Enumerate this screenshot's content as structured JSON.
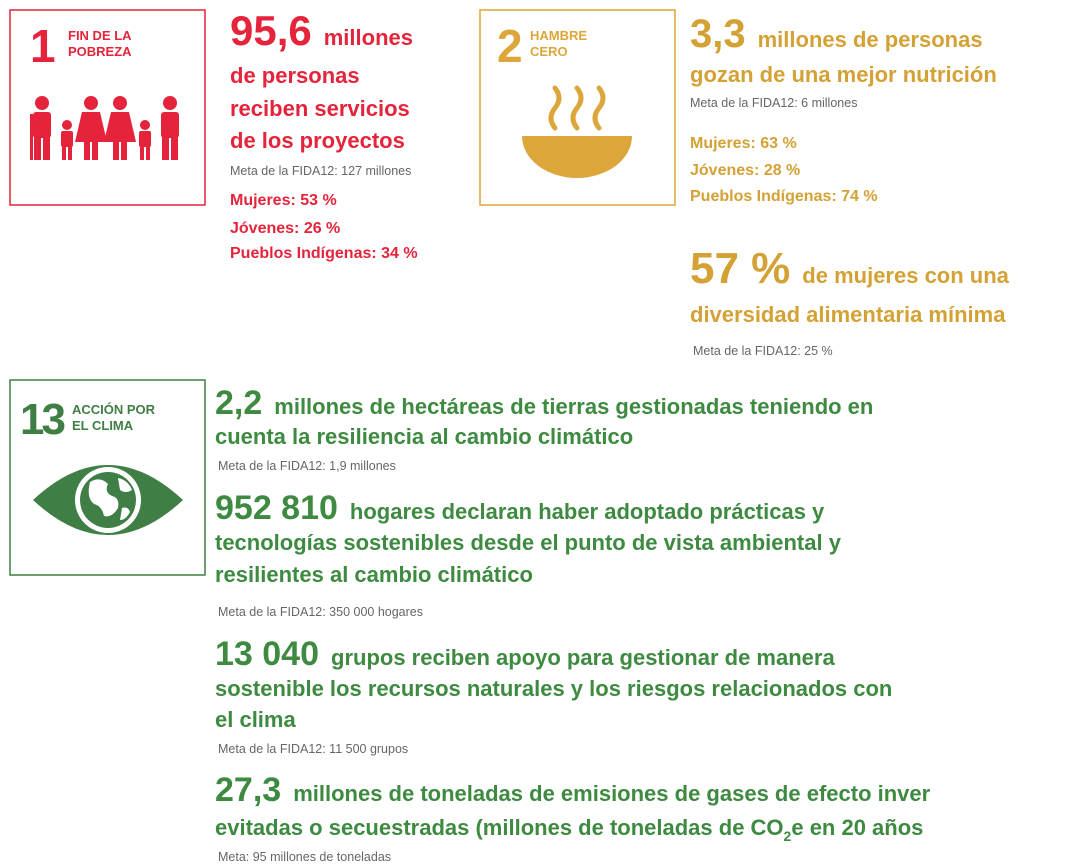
{
  "goals": [
    {
      "number": "1",
      "label": [
        "FIN DE LA",
        "POBREZA"
      ]
    },
    {
      "number": "2",
      "label": [
        "HAMBRE",
        "CERO"
      ]
    },
    {
      "number": "13",
      "label": [
        "ACCIÓN POR",
        "EL CLIMA"
      ]
    }
  ],
  "results": [
    {
      "number": "95,6",
      "lines": [
        "millones",
        "de personas",
        "reciben servicios",
        "de los proyectos"
      ],
      "target": "Meta de la FIDA12: 127 millones",
      "breakdown": [
        "Mujeres: 53 %",
        "Jóvenes: 26 %",
        "Pueblos Indígenas: 34 %"
      ]
    },
    {
      "number": "3,3",
      "lines": [
        "millones de personas",
        "gozan de una mejor nutrición"
      ],
      "target": "Meta de la FIDA12: 6 millones",
      "breakdown": [
        "Mujeres: 63 %",
        "Jóvenes: 28 %",
        "Pueblos Indígenas: 74 %"
      ]
    },
    {
      "number": "57 %",
      "lines": [
        "de mujeres con una",
        "diversidad alimentaria mínima"
      ],
      "target": "Meta de la FIDA12: 25 %"
    },
    {
      "number": "2,2",
      "lines": [
        "millones de hectáreas de tierras gestionadas teniendo en",
        "cuenta la resiliencia al cambio climático"
      ],
      "target": "Meta de la FIDA12: 1,9 millones"
    },
    {
      "number": "952 810",
      "lines": [
        "hogares declaran haber adoptado prácticas y",
        "tecnologías sostenibles desde el punto de vista ambiental y",
        "resilientes al cambio climático"
      ],
      "target": "Meta de la FIDA12: 350 000 hogares"
    },
    {
      "number": "13 040",
      "lines": [
        "grupos reciben apoyo para gestionar de manera",
        "sostenible los recursos naturales y los riesgos relacionados con",
        "el clima"
      ],
      "target": "Meta de la FIDA12: 11 500 grupos"
    },
    {
      "number": "27,3",
      "lines": [
        "millones de toneladas de emisiones de gases de efecto inver",
        {
          "text": "evitadas o secuestradas (millones de toneladas de CO",
          "sub": "2",
          "after": "e en 20 años"
        }
      ],
      "target": "Meta: 95 millones de toneladas"
    }
  ]
}
